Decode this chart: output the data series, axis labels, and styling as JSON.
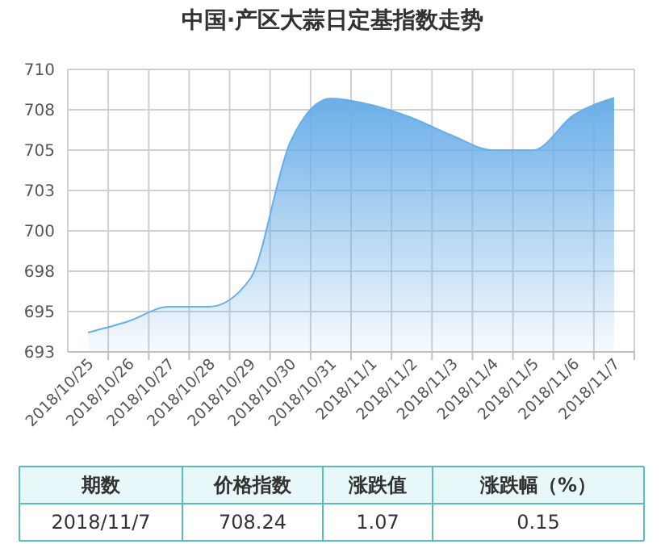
{
  "chart_data": {
    "type": "area",
    "title": "中国·产区大蒜日定基指数走势",
    "categories": [
      "2018/10/25",
      "2018/10/26",
      "2018/10/27",
      "2018/10/28",
      "2018/10/29",
      "2018/10/30",
      "2018/10/31",
      "2018/11/1",
      "2018/11/2",
      "2018/11/3",
      "2018/11/4",
      "2018/11/5",
      "2018/11/6",
      "2018/11/7"
    ],
    "series": [
      {
        "color": "#6aaee8",
        "values": [
          693.7,
          694.4,
          695.3,
          695.3,
          697.0,
          705.5,
          708.2,
          707.8,
          707.0,
          705.9,
          705.0,
          705.0,
          707.17,
          708.24
        ]
      }
    ],
    "ylim": [
      692.5,
      710
    ],
    "yticks": [
      {
        "value": 692.5,
        "label": "693"
      },
      695,
      {
        "value": 697.5,
        "label": "698"
      },
      700,
      {
        "value": 702.5,
        "label": "703"
      },
      705,
      {
        "value": 707.5,
        "label": "708"
      },
      710
    ],
    "grid": true,
    "annotations": [
      "期数",
      "价格指数",
      "涨跌值",
      "涨跌幅（%）",
      "2018/11/7",
      "708.24",
      "1.07",
      "0.15"
    ]
  }
}
